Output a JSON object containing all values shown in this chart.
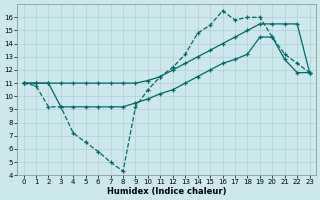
{
  "xlabel": "Humidex (Indice chaleur)",
  "bg_color": "#cde8ec",
  "line_color": "#006868",
  "grid_color": "#b0d0d4",
  "xlim": [
    -0.5,
    23.5
  ],
  "ylim": [
    4,
    17
  ],
  "xticks": [
    0,
    1,
    2,
    3,
    4,
    5,
    6,
    7,
    8,
    9,
    10,
    11,
    12,
    13,
    14,
    15,
    16,
    17,
    18,
    19,
    20,
    21,
    22,
    23
  ],
  "yticks": [
    4,
    5,
    6,
    7,
    8,
    9,
    10,
    11,
    12,
    13,
    14,
    15,
    16
  ],
  "line1_dashed": {
    "x": [
      0,
      1,
      2,
      3,
      4,
      5,
      6,
      7,
      8,
      9,
      10,
      11,
      12,
      13,
      14,
      15,
      16,
      17,
      18,
      19,
      20,
      21,
      22,
      23
    ],
    "y": [
      11,
      10.8,
      9.2,
      9.2,
      7.2,
      6.5,
      5.8,
      5.0,
      4.3,
      9.2,
      10.5,
      11.5,
      12.2,
      13.2,
      14.8,
      15.4,
      16.5,
      15.8,
      16.0,
      16.0,
      14.5,
      13.2,
      12.5,
      11.8
    ]
  },
  "line2_solid_upper": {
    "x": [
      0,
      1,
      2,
      3,
      4,
      5,
      6,
      7,
      8,
      9,
      10,
      11,
      12,
      13,
      14,
      15,
      16,
      17,
      18,
      19,
      20,
      21,
      22,
      23
    ],
    "y": [
      11,
      11,
      11,
      11,
      11,
      11,
      11,
      11,
      11,
      11.0,
      11.2,
      11.5,
      12.0,
      12.5,
      13.0,
      13.5,
      14.0,
      14.5,
      15.0,
      15.5,
      15.5,
      15.5,
      15.5,
      11.8
    ]
  },
  "line3_solid_lower": {
    "x": [
      0,
      1,
      2,
      3,
      4,
      5,
      6,
      7,
      8,
      9,
      10,
      11,
      12,
      13,
      14,
      15,
      16,
      17,
      18,
      19,
      20,
      21,
      22,
      23
    ],
    "y": [
      11,
      11,
      11,
      9.2,
      9.2,
      9.2,
      9.2,
      9.2,
      9.2,
      9.5,
      9.8,
      10.2,
      10.5,
      11.0,
      11.5,
      12.0,
      12.5,
      12.8,
      13.2,
      14.5,
      14.5,
      12.8,
      11.8,
      11.8
    ]
  }
}
